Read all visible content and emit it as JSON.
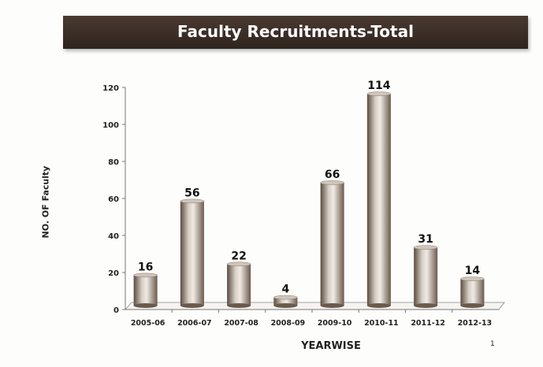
{
  "chart_data": {
    "type": "bar",
    "title": "Faculty Recruitments-Total",
    "xlabel": "YEARWISE",
    "ylabel": "NO. OF  Faculty",
    "categories": [
      "2005-06",
      "2006-07",
      "2007-08",
      "2008-09",
      "2009-10",
      "2010-11",
      "2011-12",
      "2012-13"
    ],
    "values": [
      16,
      56,
      22,
      4,
      66,
      114,
      31,
      14
    ],
    "ylim": [
      0,
      120
    ],
    "yticks": [
      0,
      20,
      40,
      60,
      80,
      100,
      120
    ],
    "grid": false,
    "legend": "none",
    "style": "3d-cylinder",
    "colors": {
      "bar": "#a89a8c",
      "title_bar": "#3a2d26"
    }
  },
  "page_number": "1"
}
